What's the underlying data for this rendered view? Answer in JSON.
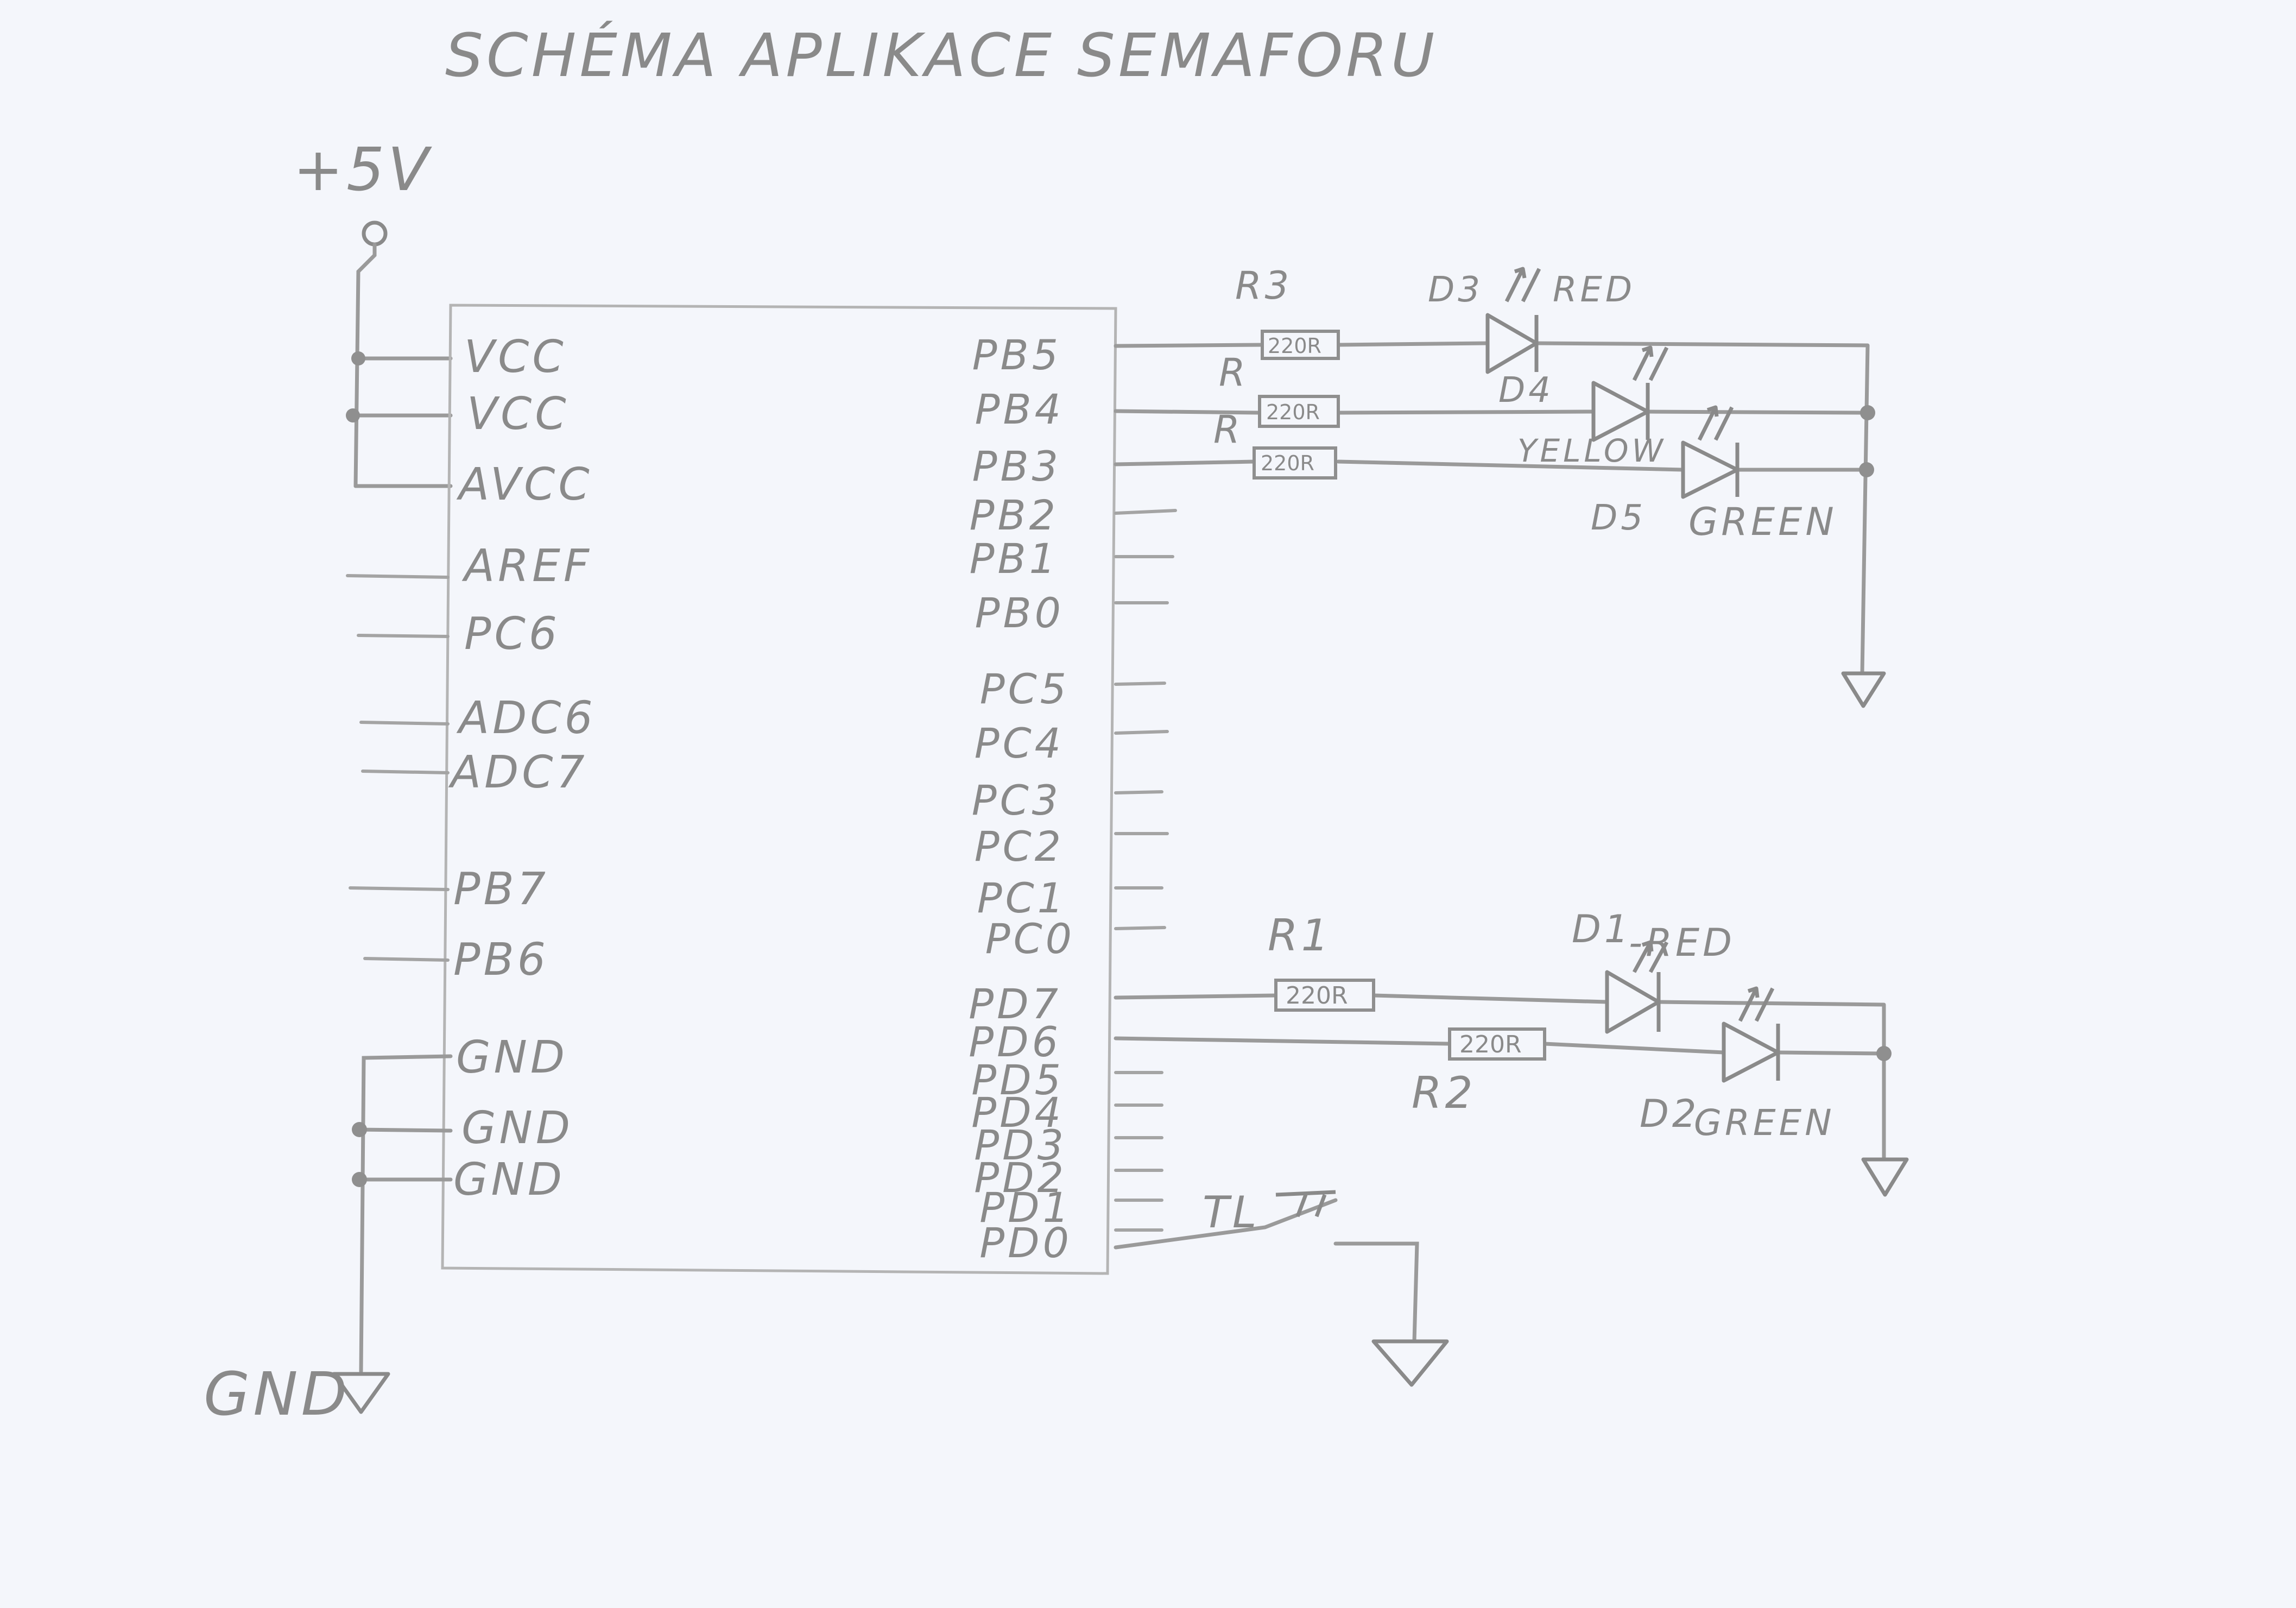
{
  "title": "SCHÉMA APLIKACE SEMAFORU",
  "power_label": "+5V",
  "ground_label": "GND",
  "mcu": {
    "left_pins": [
      "VCC",
      "VCC",
      "AVCC",
      "AREF",
      "PC6",
      "ADC6",
      "ADC7",
      "PB7",
      "PB6",
      "GND",
      "GND",
      "GND"
    ],
    "right_pins": [
      "PB5",
      "PB4",
      "PB3",
      "PB2",
      "PB1",
      "PB0",
      "PC5",
      "PC4",
      "PC3",
      "PC2",
      "PC1",
      "PC0",
      "PD7",
      "PD6",
      "PD5",
      "PD4",
      "PD3",
      "PD2",
      "PD1",
      "PD0"
    ]
  },
  "resistors": [
    {
      "name": "R3",
      "value": "220R"
    },
    {
      "name": "R",
      "value": "220R"
    },
    {
      "name": "R",
      "value": "220R"
    },
    {
      "name": "R1",
      "value": "220R"
    },
    {
      "name": "R2",
      "value": "220R"
    }
  ],
  "leds": [
    {
      "name": "D3",
      "color_label": "RED"
    },
    {
      "name": "D4",
      "color_label": "YELLOW"
    },
    {
      "name": "D5",
      "color_label": "GREEN"
    },
    {
      "name": "D1",
      "color_label": "-RED"
    },
    {
      "name": "D2",
      "color_label": "-GREEN"
    }
  ],
  "switch_label": "TL"
}
